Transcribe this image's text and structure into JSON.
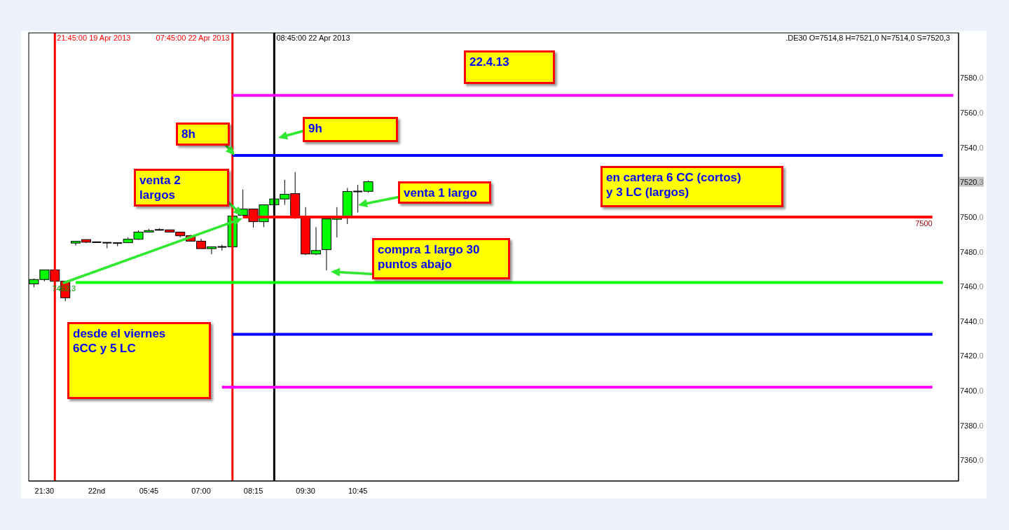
{
  "chart_data": {
    "type": "candlestick",
    "title": ".DE30 O=7514,8 H=7521,0 N=7514,0 S=7520,3",
    "categories": [
      null,
      "21:30",
      null,
      null,
      null,
      null,
      "22nd",
      null,
      null,
      null,
      null,
      "05:45",
      null,
      null,
      null,
      null,
      "07:00",
      null,
      null,
      null,
      null,
      "08:15",
      null,
      null,
      null,
      null,
      "09:30",
      null,
      null,
      null,
      null,
      "10:45",
      null,
      null,
      null,
      null,
      null,
      null,
      null,
      null,
      null,
      null,
      null,
      null,
      null,
      null,
      null,
      null,
      null,
      null,
      null,
      null,
      null,
      null,
      null,
      null,
      null,
      null,
      null,
      null,
      null,
      null,
      null,
      null,
      null,
      null,
      null,
      null,
      null,
      null,
      null,
      null,
      null,
      null,
      null,
      null,
      null,
      null,
      null,
      null,
      null,
      null,
      null,
      null,
      null,
      null,
      null,
      null,
      null
    ],
    "ohlc": [
      [
        7461.5,
        7464.5,
        7459.5,
        7464
      ],
      [
        7464,
        7469.5,
        7463,
        7469.5
      ],
      [
        7469.5,
        7469.5,
        7463,
        7463
      ],
      [
        7463,
        7463,
        7451.5,
        7453.5
      ],
      [
        7485,
        7486,
        7483.5,
        7486
      ],
      [
        7487,
        7487,
        7485,
        7485.5
      ],
      [
        7485.5,
        7485.5,
        7485.5,
        7485.5
      ],
      [
        7485.2,
        7485.2,
        7482,
        7485.2
      ],
      [
        7485,
        7485.3,
        7483.2,
        7485
      ],
      [
        7485.2,
        7488.2,
        7485.2,
        7487.2
      ],
      [
        7487.2,
        7492.2,
        7486.8,
        7491.3
      ],
      [
        7491.3,
        7493.1,
        7491.3,
        7492.2
      ],
      [
        7492.6,
        7493.5,
        7492.2,
        7492.6
      ],
      [
        7492.6,
        7492.6,
        7491.3,
        7491.3
      ],
      [
        7491.3,
        7491.3,
        7488.3,
        7489.2
      ],
      [
        7489.2,
        7489.8,
        7486.1,
        7486.1
      ],
      [
        7486.1,
        7487.5,
        7481.8,
        7481.8
      ],
      [
        7481.8,
        7482.8,
        7478.5,
        7482.8
      ],
      [
        7482.8,
        7484.1,
        7480.7,
        7482.8
      ],
      [
        7482.8,
        7501,
        7482.8,
        7500.5
      ],
      [
        7501,
        7515.8,
        7500.5,
        7504.6
      ],
      [
        7504.6,
        7504.6,
        7493.9,
        7497.3
      ],
      [
        7497.3,
        7507,
        7494.2,
        7507
      ],
      [
        7507,
        7510.4,
        7507,
        7510.4
      ],
      [
        7510.4,
        7521.4,
        7507,
        7513.1
      ],
      [
        7513.5,
        7525.9,
        7498.9,
        7500.3
      ],
      [
        7500.3,
        7505.7,
        7478.1,
        7478.7
      ],
      [
        7478.7,
        7494.2,
        7478.1,
        7480.7
      ],
      [
        7481.2,
        7498.9,
        7469.3,
        7498.9
      ],
      [
        7498.7,
        7505.7,
        7488.2,
        7499.9
      ],
      [
        7499.9,
        7516.7,
        7496,
        7514.7
      ],
      [
        7514.7,
        7518.5,
        7502.7,
        7514.7
      ],
      [
        7514.8,
        7521,
        7514,
        7520.3
      ],
      null,
      null,
      null,
      null,
      null,
      null,
      null,
      null,
      null,
      null,
      null,
      null,
      null,
      null,
      null,
      null,
      null,
      null,
      null,
      null,
      null,
      null,
      null,
      null,
      null,
      null,
      null,
      null,
      null,
      null,
      null,
      null,
      null,
      null,
      null,
      null,
      null,
      null,
      null,
      null,
      null,
      null,
      null,
      null,
      null,
      null,
      null,
      null,
      null,
      null,
      null,
      null,
      null,
      null,
      null,
      null
    ],
    "colors": [
      "#00ff00",
      "#00ff00",
      "#ff0000",
      "#ff0000",
      "#00ff00",
      "#ff0000",
      "#000000",
      "#000000",
      "#000000",
      "#00ff00",
      "#00ff00",
      "#00ff00",
      "#000000",
      "#ff0000",
      "#ff0000",
      "#ff0000",
      "#ff0000",
      "#00ff00",
      "#000000",
      "#00ff00",
      "#00ff00",
      "#ff0000",
      "#00ff00",
      "#00ff00",
      "#00ff00",
      "#ff0000",
      "#ff0000",
      "#00ff00",
      "#00ff00",
      "#00ff00",
      "#00ff00",
      "#000000",
      "#00ff00",
      null,
      null,
      null,
      null,
      null,
      null,
      null,
      null,
      null,
      null,
      null,
      null,
      null,
      null,
      null,
      null,
      null,
      null,
      null,
      null,
      null,
      null,
      null,
      null,
      null,
      null,
      null,
      null,
      null,
      null,
      null,
      null,
      null,
      null,
      null,
      null,
      null,
      null,
      null,
      null,
      null,
      null,
      null,
      null,
      null,
      null,
      null,
      null,
      null,
      null,
      null,
      null,
      null,
      null,
      null,
      null
    ],
    "series": [
      {
        "type": "line",
        "color": "#ff00ff",
        "values": [
          null,
          null,
          null,
          null,
          null,
          null,
          null,
          null,
          null,
          null,
          null,
          null,
          null,
          null,
          null,
          null,
          null,
          null,
          null,
          7570,
          7570,
          7570,
          7570,
          7570,
          7570,
          7570,
          7570,
          7570,
          7570,
          7570,
          7570,
          7570,
          7570,
          7570,
          7570,
          7570,
          7570,
          7570,
          7570,
          7570,
          7570,
          7570,
          7570,
          7570,
          7570,
          7570,
          7570,
          7570,
          7570,
          7570,
          7570,
          7570,
          7570,
          7570,
          7570,
          7570,
          7570,
          7570,
          7570,
          7570,
          7570,
          7570,
          7570,
          7570,
          7570,
          7570,
          7570,
          7570,
          7570,
          7570,
          7570,
          7570,
          7570,
          7570,
          7570,
          7570,
          7570,
          7570,
          7570,
          7570,
          7570,
          7570,
          7570,
          7570,
          7570,
          7570,
          7570,
          7570,
          7570
        ]
      },
      {
        "type": "line",
        "color": "#0000ff",
        "values": [
          null,
          null,
          null,
          null,
          null,
          null,
          null,
          null,
          null,
          null,
          null,
          null,
          null,
          null,
          null,
          null,
          null,
          null,
          null,
          7535.5,
          7535.5,
          7535.5,
          7535.5,
          7535.5,
          7535.5,
          7535.5,
          7535.5,
          7535.5,
          7535.5,
          7535.5,
          7535.5,
          7535.5,
          7535.5,
          7535.5,
          7535.5,
          7535.5,
          7535.5,
          7535.5,
          7535.5,
          7535.5,
          7535.5,
          7535.5,
          7535.5,
          7535.5,
          7535.5,
          7535.5,
          7535.5,
          7535.5,
          7535.5,
          7535.5,
          7535.5,
          7535.5,
          7535.5,
          7535.5,
          7535.5,
          7535.5,
          7535.5,
          7535.5,
          7535.5,
          7535.5,
          7535.5,
          7535.5,
          7535.5,
          7535.5,
          7535.5,
          7535.5,
          7535.5,
          7535.5,
          7535.5,
          7535.5,
          7535.5,
          7535.5,
          7535.5,
          7535.5,
          7535.5,
          7535.5,
          7535.5,
          7535.5,
          7535.5,
          7535.5,
          7535.5,
          7535.5,
          7535.5,
          7535.5,
          7535.5,
          7535.5,
          7535.5,
          7535.5,
          null
        ]
      },
      {
        "type": "line",
        "color": "#ff0000",
        "values": [
          null,
          null,
          null,
          null,
          null,
          null,
          null,
          null,
          null,
          null,
          null,
          null,
          null,
          null,
          null,
          null,
          null,
          null,
          null,
          null,
          7500,
          7500,
          7500,
          7500,
          7500,
          7500,
          7500,
          7500,
          7500,
          7500,
          7500,
          7500,
          7500,
          7500,
          7500,
          7500,
          7500,
          7500,
          7500,
          7500,
          7500,
          7500,
          7500,
          7500,
          7500,
          7500,
          7500,
          7500,
          7500,
          7500,
          7500,
          7500,
          7500,
          7500,
          7500,
          7500,
          7500,
          7500,
          7500,
          7500,
          7500,
          7500,
          7500,
          7500,
          7500,
          7500,
          7500,
          7500,
          7500,
          7500,
          7500,
          7500,
          7500,
          7500,
          7500,
          7500,
          7500,
          7500,
          7500,
          7500,
          7500,
          7500,
          7500,
          7500,
          7500,
          7500,
          7500,
          null,
          null
        ],
        "value_labels": [
          null,
          null,
          null,
          null,
          null,
          null,
          null,
          null,
          null,
          null,
          null,
          null,
          null,
          null,
          null,
          null,
          null,
          null,
          null,
          null,
          null,
          null,
          null,
          null,
          null,
          null,
          null,
          null,
          null,
          null,
          null,
          null,
          null,
          null,
          null,
          null,
          null,
          null,
          null,
          null,
          null,
          null,
          null,
          null,
          null,
          null,
          null,
          null,
          null,
          null,
          null,
          null,
          null,
          null,
          null,
          null,
          null,
          null,
          null,
          null,
          null,
          null,
          null,
          null,
          null,
          null,
          null,
          null,
          null,
          null,
          null,
          null,
          null,
          null,
          null,
          null,
          null,
          null,
          null,
          null,
          null,
          null,
          null,
          null,
          null,
          null,
          "7500",
          null,
          null
        ]
      },
      {
        "type": "line",
        "color": "#00ff00",
        "values": [
          null,
          null,
          null,
          null,
          7462.3,
          7462.3,
          7462.3,
          7462.3,
          7462.3,
          7462.3,
          7462.3,
          7462.3,
          7462.3,
          7462.3,
          7462.3,
          7462.3,
          7462.3,
          7462.3,
          7462.3,
          7462.3,
          7462.3,
          7462.3,
          7462.3,
          7462.3,
          7462.3,
          7462.3,
          7462.3,
          7462.3,
          7462.3,
          7462.3,
          7462.3,
          7462.3,
          7462.3,
          7462.3,
          7462.3,
          7462.3,
          7462.3,
          7462.3,
          7462.3,
          7462.3,
          7462.3,
          7462.3,
          7462.3,
          7462.3,
          7462.3,
          7462.3,
          7462.3,
          7462.3,
          7462.3,
          7462.3,
          7462.3,
          7462.3,
          7462.3,
          7462.3,
          7462.3,
          7462.3,
          7462.3,
          7462.3,
          7462.3,
          7462.3,
          7462.3,
          7462.3,
          7462.3,
          7462.3,
          7462.3,
          7462.3,
          7462.3,
          7462.3,
          7462.3,
          7462.3,
          7462.3,
          7462.3,
          7462.3,
          7462.3,
          7462.3,
          7462.3,
          7462.3,
          7462.3,
          7462.3,
          7462.3,
          7462.3,
          7462.3,
          7462.3,
          7462.3,
          7462.3,
          7462.3,
          7462.3,
          7462.3,
          null
        ],
        "value_labels": [
          null,
          null,
          null,
          null,
          "7462,3",
          null,
          null,
          null,
          null,
          null,
          null,
          null,
          null,
          null,
          null,
          null,
          null,
          null,
          null,
          null,
          null,
          null,
          null,
          null,
          null,
          null,
          null,
          null,
          null,
          null,
          null,
          null,
          null,
          null,
          null,
          null,
          null,
          null,
          null,
          null,
          null,
          null,
          null,
          null,
          null,
          null,
          null,
          null,
          null,
          null,
          null,
          null,
          null,
          null,
          null,
          null,
          null,
          null,
          null,
          null,
          null,
          null,
          null,
          null,
          null,
          null,
          null,
          null,
          null,
          null,
          null,
          null,
          null,
          null,
          null,
          null,
          null,
          null,
          null,
          null,
          null,
          null,
          null,
          null,
          null,
          null,
          null,
          null,
          null
        ]
      },
      {
        "type": "line",
        "color": "#0000ff",
        "values": [
          null,
          null,
          null,
          null,
          null,
          null,
          null,
          null,
          null,
          null,
          null,
          null,
          null,
          null,
          null,
          null,
          null,
          null,
          null,
          7432.5,
          7432.5,
          7432.5,
          7432.5,
          7432.5,
          7432.5,
          7432.5,
          7432.5,
          7432.5,
          7432.5,
          7432.5,
          7432.5,
          7432.5,
          7432.5,
          7432.5,
          7432.5,
          7432.5,
          7432.5,
          7432.5,
          7432.5,
          7432.5,
          7432.5,
          7432.5,
          7432.5,
          7432.5,
          7432.5,
          7432.5,
          7432.5,
          7432.5,
          7432.5,
          7432.5,
          7432.5,
          7432.5,
          7432.5,
          7432.5,
          7432.5,
          7432.5,
          7432.5,
          7432.5,
          7432.5,
          7432.5,
          7432.5,
          7432.5,
          7432.5,
          7432.5,
          7432.5,
          7432.5,
          7432.5,
          7432.5,
          7432.5,
          7432.5,
          7432.5,
          7432.5,
          7432.5,
          7432.5,
          7432.5,
          7432.5,
          7432.5,
          7432.5,
          7432.5,
          7432.5,
          7432.5,
          7432.5,
          7432.5,
          7432.5,
          7432.5,
          7432.5,
          7432.5,
          null,
          null
        ]
      },
      {
        "type": "line",
        "color": "#ff00ff",
        "values": [
          null,
          null,
          null,
          null,
          null,
          null,
          null,
          null,
          null,
          null,
          null,
          null,
          null,
          null,
          null,
          null,
          null,
          null,
          7402,
          7402,
          7402,
          7402,
          7402,
          7402,
          7402,
          7402,
          7402,
          7402,
          7402,
          7402,
          7402,
          7402,
          7402,
          7402,
          7402,
          7402,
          7402,
          7402,
          7402,
          7402,
          7402,
          7402,
          7402,
          7402,
          7402,
          7402,
          7402,
          7402,
          7402,
          7402,
          7402,
          7402,
          7402,
          7402,
          7402,
          7402,
          7402,
          7402,
          7402,
          7402,
          7402,
          7402,
          7402,
          7402,
          7402,
          7402,
          7402,
          7402,
          7402,
          7402,
          7402,
          7402,
          7402,
          7402,
          7402,
          7402,
          7402,
          7402,
          7402,
          7402,
          7402,
          7402,
          7402,
          7402,
          7402,
          7402,
          7402,
          null,
          null
        ]
      }
    ],
    "ylim": [
      7348,
      7606
    ],
    "yticks": [
      {
        "value": 7360,
        "label": "7360,0"
      },
      {
        "value": 7380,
        "label": "7380,0"
      },
      {
        "value": 7400,
        "label": "7400,0"
      },
      {
        "value": 7420,
        "label": "7420,0"
      },
      {
        "value": 7440,
        "label": "7440,0"
      },
      {
        "value": 7460,
        "label": "7460,0"
      },
      {
        "value": 7480,
        "label": "7480,0"
      },
      {
        "value": 7500,
        "label": "7500,0"
      },
      {
        "value": 7540,
        "label": "7540,0"
      },
      {
        "value": 7560,
        "label": "7560,0"
      },
      {
        "value": 7580,
        "label": "7580,0"
      }
    ],
    "annotations": [
      "21:45:00 19 Apr 2013",
      "07:45:00 22 Apr 2013",
      "08:45:00 22 Apr 2013",
      "22.4.13",
      "8h",
      "9h",
      "venta 2\nlargos",
      "venta 1 largo",
      "en cartera 6 CC (cortos)\ny 3 LC (largos)",
      "compra 1 largo 30\npuntos abajo",
      "desde el viernes\n6CC y 5 LC",
      {
        "text": "7520,3",
        "y": 7520.3
      }
    ]
  }
}
